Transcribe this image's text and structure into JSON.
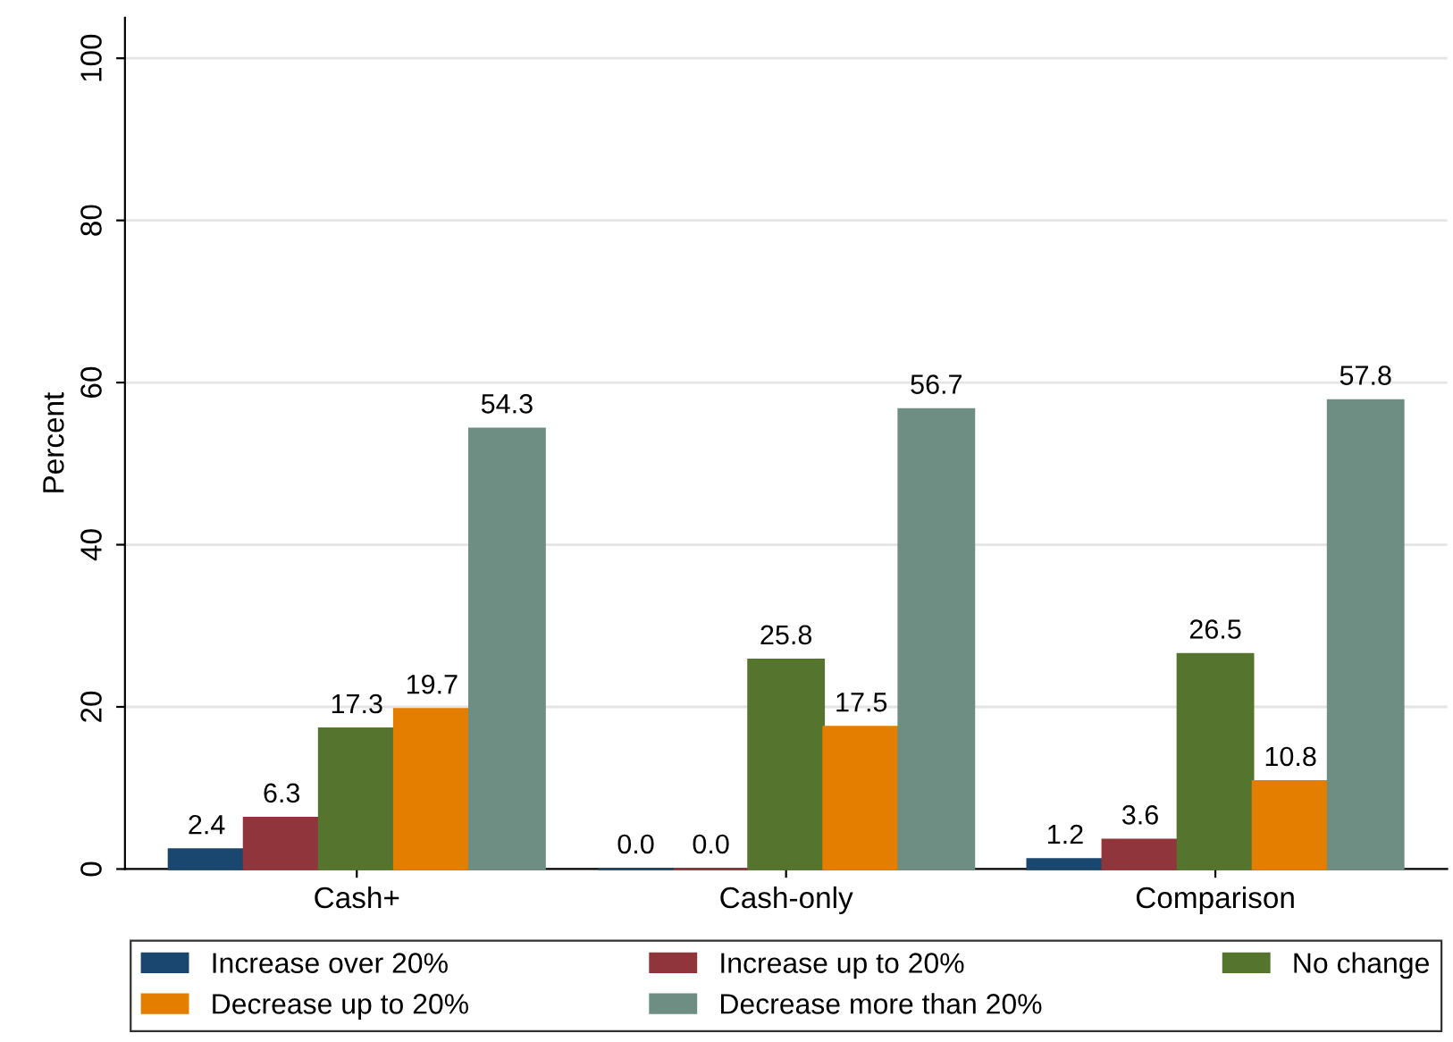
{
  "chart_data": {
    "type": "bar",
    "ylabel": "Percent",
    "categories": [
      "Cash+",
      "Cash-only",
      "Comparison"
    ],
    "series": [
      {
        "name": "Increase over 20%",
        "color": "#1a476f",
        "values": [
          2.4,
          0.0,
          1.2
        ],
        "value_labels": [
          "2.4",
          "0.0",
          "1.2"
        ]
      },
      {
        "name": "Increase up to 20%",
        "color": "#90353b",
        "values": [
          6.3,
          0.0,
          3.6
        ],
        "value_labels": [
          "6.3",
          "0.0",
          "3.6"
        ]
      },
      {
        "name": "No change",
        "color": "#55752f",
        "values": [
          17.3,
          25.8,
          26.5
        ],
        "value_labels": [
          "17.3",
          "25.8",
          "26.5"
        ]
      },
      {
        "name": "Decrease up to 20%",
        "color": "#e37e00",
        "values": [
          19.7,
          17.5,
          10.8
        ],
        "value_labels": [
          "19.7",
          "17.5",
          "10.8"
        ]
      },
      {
        "name": "Decrease more than 20%",
        "color": "#6e8e84",
        "values": [
          54.3,
          56.7,
          57.8
        ],
        "value_labels": [
          "54.3",
          "56.7",
          "57.8"
        ]
      }
    ],
    "ylim": [
      0,
      105
    ],
    "yticks": [
      0,
      20,
      40,
      60,
      80,
      100
    ],
    "grid": "y",
    "legend": "bottom"
  }
}
